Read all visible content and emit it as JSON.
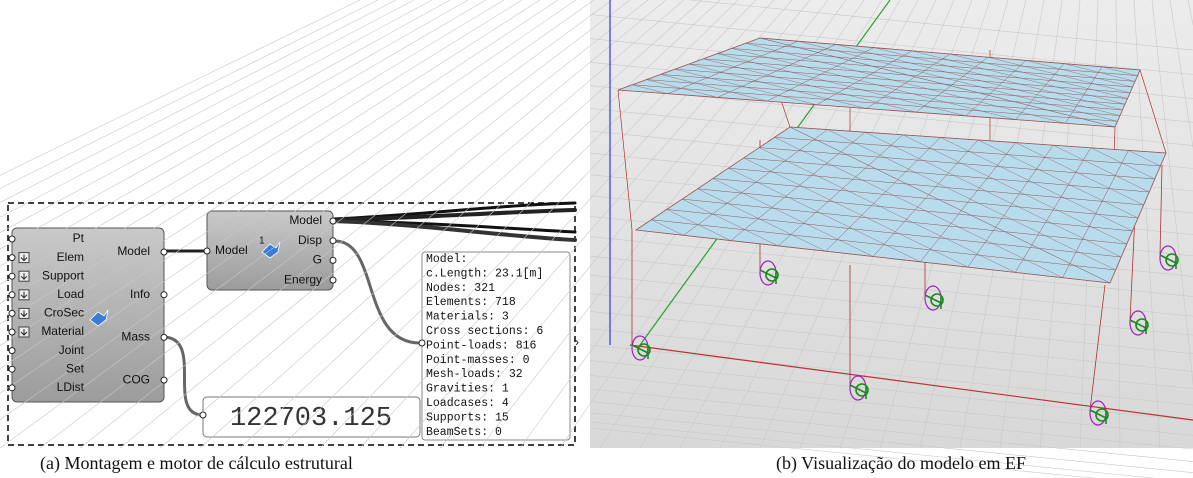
{
  "panel_a": {
    "assemble": {
      "inputs": [
        "Pt",
        "Elem",
        "Support",
        "Load",
        "CroSec",
        "Material",
        "Joint",
        "Set",
        "LDist"
      ],
      "outputs": [
        "Model",
        "Info",
        "Mass",
        "COG"
      ]
    },
    "analyze": {
      "inputs": [
        "Model"
      ],
      "badge": "1",
      "outputs": [
        "Model",
        "Disp",
        "G",
        "Energy"
      ]
    },
    "mass_value": "122703.125",
    "info_panel": [
      "Model:",
      "c.Length: 23.1[m]",
      "Nodes: 321",
      "Elements: 718",
      "Materials: 3",
      "Cross sections: 6",
      "Point-loads: 816",
      "Point-masses: 0",
      "Mesh-loads: 32",
      "Gravities: 1",
      "Loadcases: 4",
      "Supports: 15",
      "BeamSets: 0"
    ],
    "caption": "(a) Montagem e motor de cálculo estrutural"
  },
  "panel_b": {
    "caption": "(b) Visualização do modelo em EF"
  }
}
